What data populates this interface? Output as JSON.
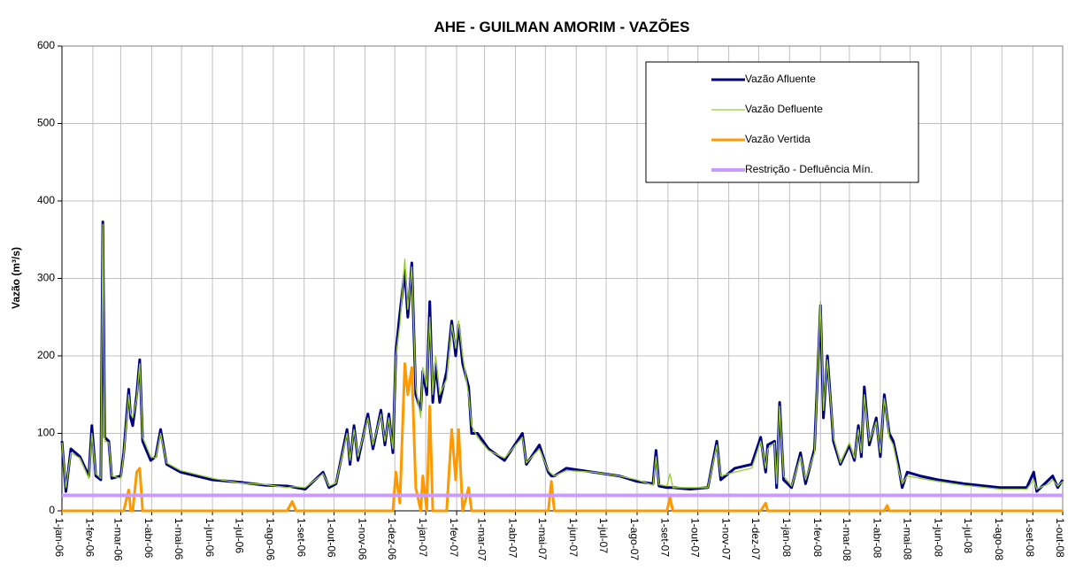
{
  "chart_data": {
    "type": "line",
    "title": "AHE - GUILMAN AMORIM - VAZÕES",
    "y_label": "Vazão (m³/s)",
    "grid": true,
    "legend": "top-right",
    "xlim": [
      "2006-01-01",
      "2008-10-01"
    ],
    "ylim": [
      0,
      600
    ],
    "yticks": [
      0,
      100,
      200,
      300,
      400,
      500,
      600
    ],
    "xticks": [
      {
        "value": "2006-01-01",
        "label": "1-jan-06"
      },
      {
        "value": "2006-02-01",
        "label": "1-fev-06"
      },
      {
        "value": "2006-03-01",
        "label": "1-mar-06"
      },
      {
        "value": "2006-04-01",
        "label": "1-abr-06"
      },
      {
        "value": "2006-05-01",
        "label": "1-mai-06"
      },
      {
        "value": "2006-06-01",
        "label": "1-jun-06"
      },
      {
        "value": "2006-07-01",
        "label": "1-jul-06"
      },
      {
        "value": "2006-08-01",
        "label": "1-ago-06"
      },
      {
        "value": "2006-09-01",
        "label": "1-set-06"
      },
      {
        "value": "2006-10-01",
        "label": "1-out-06"
      },
      {
        "value": "2006-11-01",
        "label": "1-nov-06"
      },
      {
        "value": "2006-12-01",
        "label": "1-dez-06"
      },
      {
        "value": "2007-01-01",
        "label": "1-jan-07"
      },
      {
        "value": "2007-02-01",
        "label": "1-fev-07"
      },
      {
        "value": "2007-03-01",
        "label": "1-mar-07"
      },
      {
        "value": "2007-04-01",
        "label": "1-abr-07"
      },
      {
        "value": "2007-05-01",
        "label": "1-mai-07"
      },
      {
        "value": "2007-06-01",
        "label": "1-jun-07"
      },
      {
        "value": "2007-07-01",
        "label": "1-jul-07"
      },
      {
        "value": "2007-08-01",
        "label": "1-ago-07"
      },
      {
        "value": "2007-09-01",
        "label": "1-set-07"
      },
      {
        "value": "2007-10-01",
        "label": "1-out-07"
      },
      {
        "value": "2007-11-01",
        "label": "1-nov-07"
      },
      {
        "value": "2007-12-01",
        "label": "1-dez-07"
      },
      {
        "value": "2008-01-01",
        "label": "1-jan-08"
      },
      {
        "value": "2008-02-01",
        "label": "1-fev-08"
      },
      {
        "value": "2008-03-01",
        "label": "1-mar-08"
      },
      {
        "value": "2008-04-01",
        "label": "1-abr-08"
      },
      {
        "value": "2008-05-01",
        "label": "1-mai-08"
      },
      {
        "value": "2008-06-01",
        "label": "1-jun-08"
      },
      {
        "value": "2008-07-01",
        "label": "1-jul-08"
      },
      {
        "value": "2008-08-01",
        "label": "1-ago-08"
      },
      {
        "value": "2008-09-01",
        "label": "1-set-08"
      },
      {
        "value": "2008-10-01",
        "label": "1-out-08"
      }
    ],
    "x": [
      "2006-01-01",
      "2006-01-05",
      "2006-01-10",
      "2006-01-19",
      "2006-01-28",
      "2006-01-31",
      "2006-02-04",
      "2006-02-09",
      "2006-02-11",
      "2006-02-13",
      "2006-02-17",
      "2006-02-20",
      "2006-03-01",
      "2006-03-04",
      "2006-03-09",
      "2006-03-11",
      "2006-03-13",
      "2006-03-17",
      "2006-03-20",
      "2006-03-23",
      "2006-03-31",
      "2006-04-05",
      "2006-04-10",
      "2006-04-16",
      "2006-04-30",
      "2006-06-01",
      "2006-06-28",
      "2006-07-24",
      "2006-08-15",
      "2006-08-20",
      "2006-08-24",
      "2006-09-02",
      "2006-09-20",
      "2006-09-26",
      "2006-10-03",
      "2006-10-14",
      "2006-10-17",
      "2006-10-21",
      "2006-10-25",
      "2006-11-04",
      "2006-11-09",
      "2006-11-17",
      "2006-11-21",
      "2006-11-25",
      "2006-11-29",
      "2006-12-02",
      "2006-12-06",
      "2006-12-11",
      "2006-12-14",
      "2006-12-18",
      "2006-12-22",
      "2006-12-27",
      "2006-12-29",
      "2007-01-02",
      "2007-01-05",
      "2007-01-08",
      "2007-01-11",
      "2007-01-15",
      "2007-01-22",
      "2007-01-27",
      "2007-01-31",
      "2007-02-03",
      "2007-02-07",
      "2007-02-13",
      "2007-02-16",
      "2007-02-22",
      "2007-03-05",
      "2007-03-21",
      "2007-04-08",
      "2007-04-12",
      "2007-04-25",
      "2007-05-04",
      "2007-05-07",
      "2007-05-10",
      "2007-05-22",
      "2007-06-18",
      "2007-07-14",
      "2007-08-01",
      "2007-08-17",
      "2007-08-20",
      "2007-08-23",
      "2007-08-31",
      "2007-09-03",
      "2007-09-06",
      "2007-09-23",
      "2007-10-11",
      "2007-10-20",
      "2007-10-24",
      "2007-11-07",
      "2007-11-24",
      "2007-12-03",
      "2007-12-08",
      "2007-12-10",
      "2007-12-17",
      "2007-12-19",
      "2007-12-22",
      "2007-12-26",
      "2008-01-03",
      "2008-01-12",
      "2008-01-17",
      "2008-01-26",
      "2008-02-01",
      "2008-02-04",
      "2008-02-08",
      "2008-02-14",
      "2008-02-21",
      "2008-03-01",
      "2008-03-06",
      "2008-03-10",
      "2008-03-13",
      "2008-03-16",
      "2008-03-21",
      "2008-03-28",
      "2008-04-01",
      "2008-04-05",
      "2008-04-08",
      "2008-04-10",
      "2008-04-14",
      "2008-04-19",
      "2008-04-23",
      "2008-04-28",
      "2008-05-11",
      "2008-05-29",
      "2008-06-24",
      "2008-07-30",
      "2008-08-26",
      "2008-09-02",
      "2008-09-05",
      "2008-09-17",
      "2008-09-21",
      "2008-09-26",
      "2008-10-01"
    ],
    "series": [
      {
        "name": "Vazão Afluente",
        "color": "#000080",
        "width": 3,
        "values": [
          90,
          25,
          80,
          70,
          45,
          110,
          45,
          40,
          373,
          95,
          90,
          42,
          45,
          75,
          157,
          120,
          110,
          150,
          195,
          90,
          65,
          70,
          105,
          60,
          50,
          40,
          37,
          33,
          32,
          31,
          30,
          28,
          50,
          30,
          35,
          105,
          60,
          110,
          65,
          125,
          80,
          130,
          85,
          125,
          75,
          205,
          255,
          310,
          250,
          320,
          150,
          130,
          180,
          150,
          270,
          140,
          190,
          140,
          180,
          245,
          200,
          240,
          190,
          160,
          100,
          100,
          80,
          65,
          100,
          60,
          85,
          50,
          45,
          45,
          55,
          50,
          45,
          38,
          35,
          78,
          32,
          30,
          30,
          30,
          28,
          30,
          90,
          40,
          55,
          60,
          95,
          50,
          85,
          90,
          30,
          140,
          40,
          30,
          75,
          35,
          80,
          265,
          120,
          200,
          90,
          60,
          85,
          65,
          110,
          70,
          160,
          85,
          120,
          70,
          150,
          120,
          100,
          90,
          60,
          30,
          50,
          45,
          40,
          35,
          30,
          30,
          50,
          25,
          40,
          45,
          30,
          40
        ]
      },
      {
        "name": "Vazão Defluente",
        "color": "#99cc33",
        "width": 1.3,
        "values": [
          88,
          30,
          75,
          68,
          42,
          100,
          48,
          42,
          370,
          90,
          88,
          45,
          42,
          72,
          150,
          125,
          120,
          145,
          190,
          95,
          70,
          68,
          100,
          62,
          52,
          42,
          36,
          34,
          30,
          31,
          31,
          30,
          48,
          32,
          36,
          100,
          65,
          105,
          70,
          120,
          85,
          125,
          90,
          120,
          80,
          200,
          240,
          325,
          260,
          315,
          160,
          120,
          185,
          160,
          250,
          150,
          200,
          150,
          170,
          240,
          210,
          245,
          200,
          150,
          110,
          95,
          78,
          68,
          95,
          62,
          80,
          52,
          48,
          45,
          52,
          50,
          45,
          40,
          33,
          70,
          34,
          32,
          48,
          30,
          30,
          30,
          85,
          45,
          50,
          55,
          90,
          55,
          80,
          88,
          35,
          135,
          45,
          32,
          70,
          40,
          75,
          270,
          130,
          195,
          95,
          62,
          88,
          68,
          105,
          75,
          150,
          90,
          115,
          75,
          145,
          120,
          95,
          85,
          55,
          35,
          45,
          42,
          38,
          33,
          28,
          28,
          40,
          28,
          35,
          40,
          32,
          38
        ]
      },
      {
        "name": "Vazão Vertida",
        "color": "#ff9900",
        "width": 3,
        "values": [
          0,
          0,
          0,
          0,
          0,
          0,
          0,
          0,
          0,
          0,
          0,
          0,
          0,
          0,
          27,
          0,
          0,
          50,
          55,
          0,
          0,
          0,
          0,
          0,
          0,
          0,
          0,
          0,
          0,
          12,
          0,
          0,
          0,
          0,
          0,
          0,
          0,
          0,
          0,
          0,
          0,
          0,
          0,
          0,
          0,
          50,
          10,
          190,
          150,
          185,
          30,
          0,
          45,
          0,
          135,
          0,
          0,
          0,
          0,
          105,
          40,
          105,
          0,
          30,
          0,
          0,
          0,
          0,
          0,
          0,
          0,
          0,
          38,
          0,
          0,
          0,
          0,
          0,
          0,
          0,
          0,
          0,
          17,
          0,
          0,
          0,
          0,
          0,
          0,
          0,
          0,
          10,
          0,
          0,
          0,
          0,
          0,
          0,
          0,
          0,
          0,
          0,
          0,
          0,
          0,
          0,
          0,
          0,
          0,
          0,
          0,
          0,
          0,
          0,
          0,
          7,
          0,
          0,
          0,
          0,
          0,
          0,
          0,
          0,
          0,
          0,
          0,
          0,
          0,
          0,
          0,
          0
        ]
      },
      {
        "name": "Restrição - Defluência Mín.",
        "color": "#cc99ff",
        "width": 4,
        "x": [
          "2006-01-01",
          "2008-10-01"
        ],
        "values": [
          20,
          20
        ]
      }
    ]
  }
}
